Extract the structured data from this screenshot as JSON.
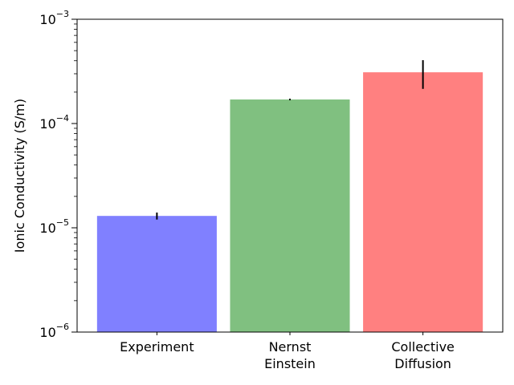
{
  "chart_data": {
    "type": "bar",
    "categories": [
      [
        "Experiment"
      ],
      [
        "Nernst",
        "Einstein"
      ],
      [
        "Collective",
        "Diffusion"
      ]
    ],
    "values": [
      1.3e-05,
      0.00017,
      0.00031
    ],
    "errors": [
      [
        1.2e-05,
        1.4e-05
      ],
      [
        0.000167,
        0.000173
      ],
      [
        0.000215,
        0.000405
      ]
    ],
    "colors": [
      "#8080ff",
      "#80c080",
      "#ff8080"
    ],
    "ylabel": "Ionic Conductivity (S/m)",
    "yscale": "log",
    "ylim": [
      1e-06,
      0.001
    ],
    "yticks": [
      {
        "base": "10",
        "exp": "−6",
        "value": 1e-06
      },
      {
        "base": "10",
        "exp": "−5",
        "value": 1e-05
      },
      {
        "base": "10",
        "exp": "−4",
        "value": 0.0001
      },
      {
        "base": "10",
        "exp": "−3",
        "value": 0.001
      }
    ],
    "grid": false,
    "legend": "none"
  }
}
